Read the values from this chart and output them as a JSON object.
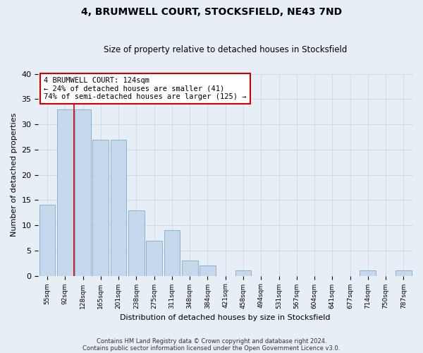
{
  "title": "4, BRUMWELL COURT, STOCKSFIELD, NE43 7ND",
  "subtitle": "Size of property relative to detached houses in Stocksfield",
  "xlabel": "Distribution of detached houses by size in Stocksfield",
  "ylabel": "Number of detached properties",
  "footnote1": "Contains HM Land Registry data © Crown copyright and database right 2024.",
  "footnote2": "Contains public sector information licensed under the Open Government Licence v3.0.",
  "bin_labels": [
    "55sqm",
    "92sqm",
    "128sqm",
    "165sqm",
    "201sqm",
    "238sqm",
    "275sqm",
    "311sqm",
    "348sqm",
    "384sqm",
    "421sqm",
    "458sqm",
    "494sqm",
    "531sqm",
    "567sqm",
    "604sqm",
    "641sqm",
    "677sqm",
    "714sqm",
    "750sqm",
    "787sqm"
  ],
  "bar_values": [
    14,
    33,
    33,
    27,
    27,
    13,
    7,
    9,
    3,
    2,
    0,
    1,
    0,
    0,
    0,
    0,
    0,
    0,
    1,
    0,
    1
  ],
  "bar_color": "#c5d8ec",
  "bar_edge_color": "#7aaac8",
  "annotation_title": "4 BRUMWELL COURT: 124sqm",
  "annotation_line1": "← 24% of detached houses are smaller (41)",
  "annotation_line2": "74% of semi-detached houses are larger (125) →",
  "annotation_box_facecolor": "#ffffff",
  "annotation_box_edgecolor": "#cc0000",
  "vline_color": "#cc0000",
  "vline_x": 1.5,
  "ylim": [
    0,
    40
  ],
  "yticks": [
    0,
    5,
    10,
    15,
    20,
    25,
    30,
    35,
    40
  ],
  "grid_color": "#d0dce8",
  "background_color": "#e8eef6",
  "axes_background": "#e8eef6",
  "title_fontsize": 10,
  "subtitle_fontsize": 8.5
}
